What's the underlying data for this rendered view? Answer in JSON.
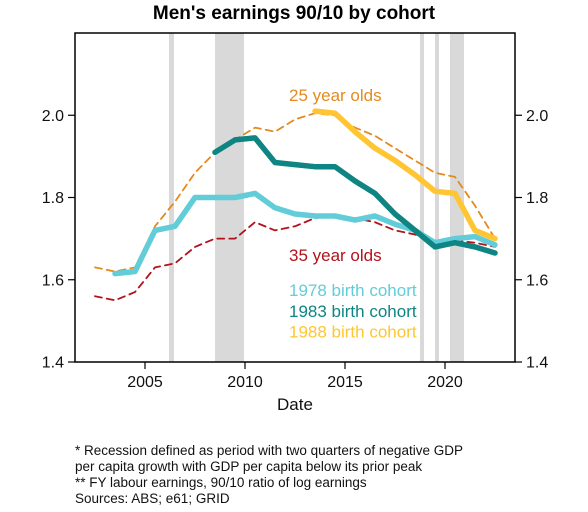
{
  "chart_data": {
    "type": "line",
    "title": "Men's earnings 90/10 by cohort",
    "xlabel": "Date",
    "ylabel": "",
    "xlim": [
      2001.5,
      2023.5
    ],
    "ylim": [
      1.4,
      2.2
    ],
    "yticks": [
      1.4,
      1.6,
      1.8,
      2.0
    ],
    "ytick_labels": [
      "1.4",
      "1.6",
      "1.8",
      "2.0"
    ],
    "xticks": [
      2005,
      2010,
      2015,
      2020
    ],
    "xtick_labels": [
      "2005",
      "2010",
      "2015",
      "2020"
    ],
    "grid": false,
    "legend": "inline text labels inside plot",
    "recessions": [
      {
        "start": 2006.2,
        "end": 2006.45
      },
      {
        "start": 2008.5,
        "end": 2009.95
      },
      {
        "start": 2018.75,
        "end": 2018.95
      },
      {
        "start": 2019.5,
        "end": 2019.7
      },
      {
        "start": 2020.25,
        "end": 2020.95
      }
    ],
    "recession_color": "#d9d9d9",
    "series": [
      {
        "name": "25 year olds",
        "style": "dashed",
        "color": "#e58a1f",
        "x": [
          2002.5,
          2003.5,
          2004.5,
          2005.5,
          2006.5,
          2007.5,
          2008.5,
          2009.5,
          2010.5,
          2011.5,
          2012.5,
          2013.5,
          2014.5,
          2015.5,
          2016.5,
          2017.5,
          2018.5,
          2019.5,
          2020.5,
          2021.5,
          2022.5
        ],
        "y": [
          1.63,
          1.62,
          1.63,
          1.73,
          1.79,
          1.86,
          1.91,
          1.94,
          1.97,
          1.96,
          1.99,
          2.005,
          2.0,
          1.97,
          1.95,
          1.92,
          1.89,
          1.86,
          1.85,
          1.78,
          1.7
        ]
      },
      {
        "name": "35 year olds",
        "style": "dashed",
        "color": "#b2121c",
        "x": [
          2002.5,
          2003.5,
          2004.5,
          2005.5,
          2006.5,
          2007.5,
          2008.5,
          2009.5,
          2010.5,
          2011.5,
          2012.5,
          2013.5,
          2014.5,
          2015.5,
          2016.5,
          2017.5,
          2018.5,
          2019.5,
          2020.5,
          2021.5,
          2022.5
        ],
        "y": [
          1.56,
          1.55,
          1.57,
          1.63,
          1.64,
          1.68,
          1.7,
          1.7,
          1.74,
          1.72,
          1.73,
          1.75,
          1.755,
          1.75,
          1.74,
          1.72,
          1.71,
          1.69,
          1.695,
          1.69,
          1.68
        ]
      },
      {
        "name": "1978 birth cohort",
        "style": "solid",
        "color": "#62cdd9",
        "x": [
          2003.5,
          2004.5,
          2005.5,
          2006.5,
          2007.5,
          2008.5,
          2009.5,
          2010.5,
          2011.5,
          2012.5,
          2013.5,
          2014.5,
          2015.5,
          2016.5,
          2017.5,
          2018.5,
          2019.5,
          2020.5,
          2021.5,
          2022.5
        ],
        "y": [
          1.615,
          1.62,
          1.72,
          1.73,
          1.8,
          1.8,
          1.8,
          1.81,
          1.775,
          1.76,
          1.755,
          1.755,
          1.745,
          1.755,
          1.735,
          1.72,
          1.69,
          1.7,
          1.705,
          1.685
        ]
      },
      {
        "name": "1983 birth cohort",
        "style": "solid",
        "color": "#0e8582",
        "x": [
          2008.5,
          2009.5,
          2010.5,
          2011.5,
          2012.5,
          2013.5,
          2014.5,
          2015.5,
          2016.5,
          2017.5,
          2018.5,
          2019.5,
          2020.5,
          2021.5,
          2022.5
        ],
        "y": [
          1.91,
          1.94,
          1.945,
          1.885,
          1.88,
          1.875,
          1.875,
          1.84,
          1.81,
          1.76,
          1.72,
          1.68,
          1.69,
          1.68,
          1.665
        ]
      },
      {
        "name": "1988 birth cohort",
        "style": "solid",
        "color": "#ffc533",
        "x": [
          2013.5,
          2014.5,
          2015.5,
          2016.5,
          2017.5,
          2018.5,
          2019.5,
          2020.5,
          2021.5,
          2022.5
        ],
        "y": [
          2.01,
          2.005,
          1.96,
          1.92,
          1.89,
          1.855,
          1.815,
          1.81,
          1.72,
          1.7
        ]
      }
    ],
    "annotations": [
      {
        "text": "25 year olds",
        "color": "#e58a1f"
      },
      {
        "text": "35 year olds",
        "color": "#b2121c"
      },
      {
        "text": "1978 birth cohort",
        "color": "#62cdd9"
      },
      {
        "text": "1983 birth cohort",
        "color": "#0e8582"
      },
      {
        "text": "1988 birth cohort",
        "color": "#ffc533"
      }
    ]
  },
  "notes": [
    "* Recession defined as period with two quarters of negative GDP",
    "per capita growth with GDP per capita below its prior peak",
    "** FY labour earnings, 90/10 ratio of log earnings",
    "Sources: ABS; e61; GRID"
  ]
}
